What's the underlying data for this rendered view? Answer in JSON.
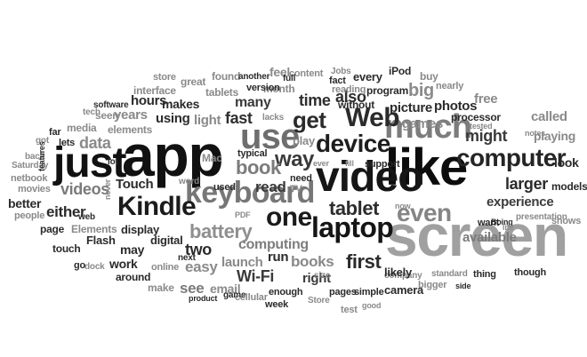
{
  "words": [
    {
      "text": "app",
      "shade": "#111111"
    },
    {
      "text": "like",
      "shade": "#0d0d0d"
    },
    {
      "text": "video",
      "shade": "#161616"
    },
    {
      "text": "screen",
      "shade": "#a0a0a0"
    },
    {
      "text": "just",
      "shade": "#111111"
    },
    {
      "text": "much",
      "shade": "#7c7c7c"
    },
    {
      "text": "use",
      "shade": "#6e6e6e"
    },
    {
      "text": "keyboard",
      "shade": "#777777"
    },
    {
      "text": "device",
      "shade": "#1d1d1d"
    },
    {
      "text": "laptop",
      "shade": "#151515"
    },
    {
      "text": "Kindle",
      "shade": "#1b1b1b"
    },
    {
      "text": "computer",
      "shade": "#252525"
    },
    {
      "text": "even",
      "shade": "#858585"
    },
    {
      "text": "one",
      "shade": "#1b1b1b"
    },
    {
      "text": "Web",
      "shade": "#2b2b2b"
    },
    {
      "text": "get",
      "shade": "#2b2b2b"
    },
    {
      "text": "way",
      "shade": "#3a3a3a"
    },
    {
      "text": "tablet",
      "shade": "#2d2d2d"
    },
    {
      "text": "first",
      "shade": "#2b2b2b"
    },
    {
      "text": "battery",
      "shade": "#8f8f8f"
    },
    {
      "text": "book",
      "shade": "#7c7c7c"
    },
    {
      "text": "time",
      "shade": "#2e2e2e"
    },
    {
      "text": "also",
      "shade": "#2e2e2e"
    },
    {
      "text": "videos",
      "shade": "#7a7a7a"
    },
    {
      "text": "fast",
      "shade": "#2e2e2e"
    },
    {
      "text": "many",
      "shade": "#3a3a3a"
    },
    {
      "text": "data",
      "shade": "#8a8a8a"
    },
    {
      "text": "might",
      "shade": "#3a3a3a"
    },
    {
      "text": "experience",
      "shade": "#3c3c3c"
    },
    {
      "text": "two",
      "shade": "#2b2b2b"
    },
    {
      "text": "Wi-Fi",
      "shade": "#3a3a3a"
    },
    {
      "text": "books",
      "shade": "#888888"
    },
    {
      "text": "computing",
      "shade": "#7e7e7e"
    },
    {
      "text": "read",
      "shade": "#3a3a3a"
    },
    {
      "text": "either",
      "shade": "#2b2b2b"
    },
    {
      "text": "see",
      "shade": "#7a7a7a"
    },
    {
      "text": "easy",
      "shade": "#8a8a8a"
    },
    {
      "text": "launch",
      "shade": "#8a8a8a"
    },
    {
      "text": "run",
      "shade": "#2b2b2b"
    },
    {
      "text": "right",
      "shade": "#3a3a3a"
    },
    {
      "text": "available",
      "shade": "#7a7a7a"
    },
    {
      "text": "larger",
      "shade": "#2b2b2b"
    },
    {
      "text": "Touch",
      "shade": "#2b2b2b"
    },
    {
      "text": "playing",
      "shade": "#8a8a8a"
    },
    {
      "text": "called",
      "shade": "#8a8a8a"
    },
    {
      "text": "look",
      "shade": "#2b2b2b"
    },
    {
      "text": "years",
      "shade": "#8a8a8a"
    },
    {
      "text": "hours",
      "shade": "#2b2b2b"
    },
    {
      "text": "games",
      "shade": "#8a8a8a"
    },
    {
      "text": "picture",
      "shade": "#2b2b2b"
    },
    {
      "text": "photos",
      "shade": "#2b2b2b"
    },
    {
      "text": "processor",
      "shade": "#2b2b2b"
    },
    {
      "text": "free",
      "shade": "#8a8a8a"
    },
    {
      "text": "big",
      "shade": "#8a8a8a"
    },
    {
      "text": "every",
      "shade": "#2b2b2b"
    },
    {
      "text": "iPod",
      "shade": "#2b2b2b"
    },
    {
      "text": "program",
      "shade": "#2b2b2b"
    },
    {
      "text": "reading",
      "shade": "#8a8a8a"
    },
    {
      "text": "without",
      "shade": "#2b2b2b"
    },
    {
      "text": "fact",
      "shade": "#2b2b2b"
    },
    {
      "text": "content",
      "shade": "#8a8a8a"
    },
    {
      "text": "feel",
      "shade": "#8a8a8a"
    },
    {
      "text": "month",
      "shade": "#8a8a8a"
    },
    {
      "text": "version",
      "shade": "#2b2b2b"
    },
    {
      "text": "full",
      "shade": "#2b2b2b"
    },
    {
      "text": "tablets",
      "shade": "#8a8a8a"
    },
    {
      "text": "makes",
      "shade": "#2b2b2b"
    },
    {
      "text": "interface",
      "shade": "#8a8a8a"
    },
    {
      "text": "store",
      "shade": "#8a8a8a"
    },
    {
      "text": "great",
      "shade": "#8a8a8a"
    },
    {
      "text": "found",
      "shade": "#8a8a8a"
    },
    {
      "text": "another",
      "shade": "#2b2b2b"
    },
    {
      "text": "Jobs",
      "shade": "#8a8a8a"
    },
    {
      "text": "buy",
      "shade": "#8a8a8a"
    },
    {
      "text": "nearly",
      "shade": "#8a8a8a"
    },
    {
      "text": "tested",
      "shade": "#8a8a8a"
    },
    {
      "text": "software",
      "shade": "#2b2b2b"
    },
    {
      "text": "tech",
      "shade": "#8a8a8a"
    },
    {
      "text": "elements",
      "shade": "#8a8a8a"
    },
    {
      "text": "seen",
      "shade": "#8a8a8a"
    },
    {
      "text": "using",
      "shade": "#2b2b2b"
    },
    {
      "text": "light",
      "shade": "#8a8a8a"
    },
    {
      "text": "lacks",
      "shade": "#8a8a8a"
    },
    {
      "text": "play",
      "shade": "#8a8a8a"
    },
    {
      "text": "media",
      "shade": "#8a8a8a"
    },
    {
      "text": "far",
      "shade": "#2b2b2b"
    },
    {
      "text": "lets",
      "shade": "#2b2b2b"
    },
    {
      "text": "got",
      "shade": "#8a8a8a"
    },
    {
      "text": "netbook",
      "shade": "#8a8a8a"
    },
    {
      "text": "Saturday",
      "shade": "#8a8a8a"
    },
    {
      "text": "movies",
      "shade": "#8a8a8a"
    },
    {
      "text": "lot",
      "shade": "#2b2b2b"
    },
    {
      "text": "back",
      "shade": "#8a8a8a"
    },
    {
      "text": "better",
      "shade": "#2b2b2b"
    },
    {
      "text": "typical",
      "shade": "#2b2b2b"
    },
    {
      "text": "Mac",
      "shade": "#8a8a8a"
    },
    {
      "text": "word",
      "shade": "#8a8a8a"
    },
    {
      "text": "used",
      "shade": "#2b2b2b"
    },
    {
      "text": "need",
      "shade": "#2b2b2b"
    },
    {
      "text": "TV",
      "shade": "#8a8a8a"
    },
    {
      "text": "ever",
      "shade": "#8a8a8a"
    },
    {
      "text": "fill",
      "shade": "#8a8a8a"
    },
    {
      "text": "support",
      "shade": "#2b2b2b"
    },
    {
      "text": "notes",
      "shade": "#8a8a8a"
    },
    {
      "text": "models",
      "shade": "#2b2b2b"
    },
    {
      "text": "Boing",
      "shade": "#2b2b2b"
    },
    {
      "text": "presentation",
      "shade": "#8a8a8a"
    },
    {
      "text": "now",
      "shade": "#8a8a8a"
    },
    {
      "text": "want",
      "shade": "#2b2b2b"
    },
    {
      "text": "life",
      "shade": "#8a8a8a"
    },
    {
      "text": "shows",
      "shade": "#8a8a8a"
    },
    {
      "text": "people",
      "shade": "#8a8a8a"
    },
    {
      "text": "web",
      "shade": "#2b2b2b"
    },
    {
      "text": "page",
      "shade": "#2b2b2b"
    },
    {
      "text": "Elements",
      "shade": "#8a8a8a"
    },
    {
      "text": "display",
      "shade": "#2b2b2b"
    },
    {
      "text": "PDF",
      "shade": "#8a8a8a"
    },
    {
      "text": "digital",
      "shade": "#2b2b2b"
    },
    {
      "text": "Flash",
      "shade": "#2b2b2b"
    },
    {
      "text": "touch",
      "shade": "#2b2b2b"
    },
    {
      "text": "may",
      "shade": "#2b2b2b"
    },
    {
      "text": "go",
      "shade": "#2b2b2b"
    },
    {
      "text": "dock",
      "shade": "#8a8a8a"
    },
    {
      "text": "work",
      "shade": "#2b2b2b"
    },
    {
      "text": "next",
      "shade": "#2b2b2b"
    },
    {
      "text": "online",
      "shade": "#8a8a8a"
    },
    {
      "text": "around",
      "shade": "#2b2b2b"
    },
    {
      "text": "make",
      "shade": "#8a8a8a"
    },
    {
      "text": "email",
      "shade": "#8a8a8a"
    },
    {
      "text": "game",
      "shade": "#2b2b2b"
    },
    {
      "text": "product",
      "shade": "#2b2b2b"
    },
    {
      "text": "cellular",
      "shade": "#8a8a8a"
    },
    {
      "text": "size",
      "shade": "#8a8a8a"
    },
    {
      "text": "enough",
      "shade": "#2b2b2b"
    },
    {
      "text": "week",
      "shade": "#2b2b2b"
    },
    {
      "text": "Store",
      "shade": "#8a8a8a"
    },
    {
      "text": "pages",
      "shade": "#2b2b2b"
    },
    {
      "text": "simple",
      "shade": "#2b2b2b"
    },
    {
      "text": "test",
      "shade": "#8a8a8a"
    },
    {
      "text": "good",
      "shade": "#8a8a8a"
    },
    {
      "text": "company",
      "shade": "#8a8a8a"
    },
    {
      "text": "camera",
      "shade": "#2b2b2b"
    },
    {
      "text": "likely",
      "shade": "#2b2b2b"
    },
    {
      "text": "bigger",
      "shade": "#8a8a8a"
    },
    {
      "text": "standard",
      "shade": "#8a8a8a"
    },
    {
      "text": "side",
      "shade": "#2b2b2b"
    },
    {
      "text": "thing",
      "shade": "#2b2b2b"
    },
    {
      "text": "though",
      "shade": "#2b2b2b"
    },
    {
      "text": "features",
      "shade": "#2b2b2b"
    },
    {
      "text": "never",
      "shade": "#8a8a8a"
    }
  ]
}
